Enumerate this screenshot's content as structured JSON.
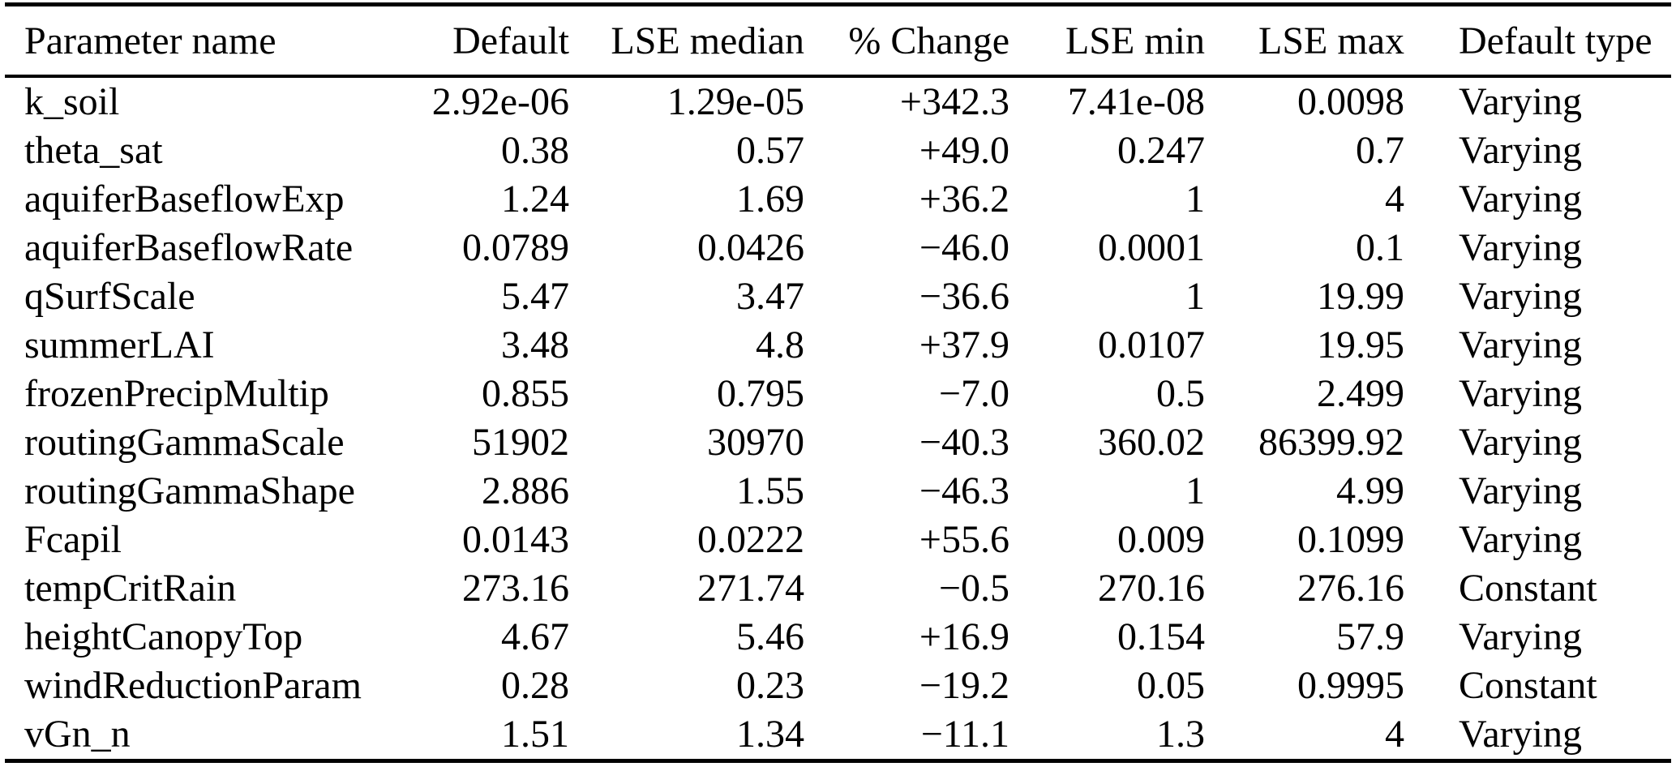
{
  "page": {
    "background_color": "#ffffff",
    "text_color": "#000000",
    "rule_color": "#000000"
  },
  "table": {
    "columns": [
      {
        "label": "Parameter name",
        "align": "left"
      },
      {
        "label": "Default",
        "align": "right"
      },
      {
        "label": "LSE median",
        "align": "right"
      },
      {
        "label": "% Change",
        "align": "right"
      },
      {
        "label": "LSE min",
        "align": "right"
      },
      {
        "label": "LSE max",
        "align": "right"
      },
      {
        "label": "Default type",
        "align": "left"
      }
    ],
    "rows": [
      [
        "k_soil",
        "2.92e-06",
        "1.29e-05",
        "+342.3",
        "7.41e-08",
        "0.0098",
        "Varying"
      ],
      [
        "theta_sat",
        "0.38",
        "0.57",
        "+49.0",
        "0.247",
        "0.7",
        "Varying"
      ],
      [
        "aquiferBaseflowExp",
        "1.24",
        "1.69",
        "+36.2",
        "1",
        "4",
        "Varying"
      ],
      [
        "aquiferBaseflowRate",
        "0.0789",
        "0.0426",
        "−46.0",
        "0.0001",
        "0.1",
        "Varying"
      ],
      [
        "qSurfScale",
        "5.47",
        "3.47",
        "−36.6",
        "1",
        "19.99",
        "Varying"
      ],
      [
        "summerLAI",
        "3.48",
        "4.8",
        "+37.9",
        "0.0107",
        "19.95",
        "Varying"
      ],
      [
        "frozenPrecipMultip",
        "0.855",
        "0.795",
        "−7.0",
        "0.5",
        "2.499",
        "Varying"
      ],
      [
        "routingGammaScale",
        "51902",
        "30970",
        "−40.3",
        "360.02",
        "86399.92",
        "Varying"
      ],
      [
        "routingGammaShape",
        "2.886",
        "1.55",
        "−46.3",
        "1",
        "4.99",
        "Varying"
      ],
      [
        "Fcapil",
        "0.0143",
        "0.0222",
        "+55.6",
        "0.009",
        "0.1099",
        "Varying"
      ],
      [
        "tempCritRain",
        "273.16",
        "271.74",
        "−0.5",
        "270.16",
        "276.16",
        "Constant"
      ],
      [
        "heightCanopyTop",
        "4.67",
        "5.46",
        "+16.9",
        "0.154",
        "57.9",
        "Varying"
      ],
      [
        "windReductionParam",
        "0.28",
        "0.23",
        "−19.2",
        "0.05",
        "0.9995",
        "Constant"
      ],
      [
        "vGn_n",
        "1.51",
        "1.34",
        "−11.1",
        "1.3",
        "4",
        "Varying"
      ]
    ]
  },
  "chart_data": {
    "type": "table",
    "title": "",
    "columns": [
      "Parameter name",
      "Default",
      "LSE median",
      "% Change",
      "LSE min",
      "LSE max",
      "Default type"
    ],
    "rows": [
      [
        "k_soil",
        "2.92e-06",
        "1.29e-05",
        "+342.3",
        "7.41e-08",
        "0.0098",
        "Varying"
      ],
      [
        "theta_sat",
        "0.38",
        "0.57",
        "+49.0",
        "0.247",
        "0.7",
        "Varying"
      ],
      [
        "aquiferBaseflowExp",
        "1.24",
        "1.69",
        "+36.2",
        "1",
        "4",
        "Varying"
      ],
      [
        "aquiferBaseflowRate",
        "0.0789",
        "0.0426",
        "−46.0",
        "0.0001",
        "0.1",
        "Varying"
      ],
      [
        "qSurfScale",
        "5.47",
        "3.47",
        "−36.6",
        "1",
        "19.99",
        "Varying"
      ],
      [
        "summerLAI",
        "3.48",
        "4.8",
        "+37.9",
        "0.0107",
        "19.95",
        "Varying"
      ],
      [
        "frozenPrecipMultip",
        "0.855",
        "0.795",
        "−7.0",
        "0.5",
        "2.499",
        "Varying"
      ],
      [
        "routingGammaScale",
        "51902",
        "30970",
        "−40.3",
        "360.02",
        "86399.92",
        "Varying"
      ],
      [
        "routingGammaShape",
        "2.886",
        "1.55",
        "−46.3",
        "1",
        "4.99",
        "Varying"
      ],
      [
        "Fcapil",
        "0.0143",
        "0.0222",
        "+55.6",
        "0.009",
        "0.1099",
        "Varying"
      ],
      [
        "tempCritRain",
        "273.16",
        "271.74",
        "−0.5",
        "270.16",
        "276.16",
        "Constant"
      ],
      [
        "heightCanopyTop",
        "4.67",
        "5.46",
        "+16.9",
        "0.154",
        "57.9",
        "Varying"
      ],
      [
        "windReductionParam",
        "0.28",
        "0.23",
        "−19.2",
        "0.05",
        "0.9995",
        "Constant"
      ],
      [
        "vGn_n",
        "1.51",
        "1.34",
        "−11.1",
        "1.3",
        "4",
        "Varying"
      ]
    ]
  }
}
